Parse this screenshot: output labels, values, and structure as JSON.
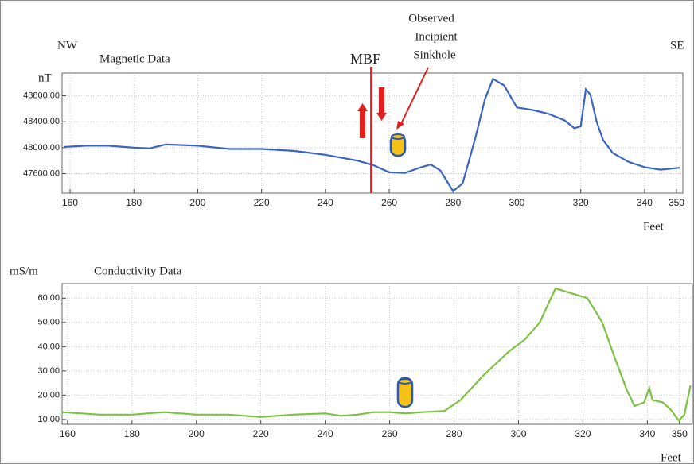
{
  "chart_data": [
    {
      "type": "line",
      "title": "Magnetic Data",
      "left_label": "NW",
      "right_label": "SE",
      "y_label": "nT",
      "x_label": "Feet",
      "marker_label": "MBF",
      "marker_x": 254.4,
      "callout_lines": [
        "Observed",
        "Incipient",
        "Sinkhole"
      ],
      "xlim": [
        157.5,
        352
      ],
      "ylim": [
        47300,
        49150
      ],
      "xticks": [
        160,
        180,
        200,
        220,
        240,
        260,
        280,
        300,
        320,
        340,
        350
      ],
      "yticks": [
        {
          "value": 47600,
          "label": "47600.00"
        },
        {
          "value": 48000,
          "label": "48000.00"
        },
        {
          "value": 48400,
          "label": "48400.00"
        },
        {
          "value": 48800,
          "label": "48800.00"
        }
      ],
      "grid": true,
      "series": [
        {
          "name": "Magnetic Data",
          "color": "#3a63c6",
          "x": [
            158,
            165,
            172,
            180,
            185,
            190,
            200,
            210,
            220,
            230,
            240,
            250,
            255,
            260,
            265,
            270,
            273,
            276,
            280,
            283,
            287,
            290,
            292.5,
            296,
            300,
            305,
            310,
            315,
            318,
            320,
            321.6,
            323,
            325,
            327,
            330,
            335,
            340,
            345,
            351
          ],
          "values": [
            48010,
            48030,
            48030,
            48000,
            47990,
            48050,
            48030,
            47980,
            47980,
            47950,
            47890,
            47800,
            47730,
            47620,
            47610,
            47700,
            47740,
            47650,
            47330,
            47450,
            48150,
            48750,
            49060,
            48960,
            48620,
            48580,
            48520,
            48420,
            48300,
            48330,
            48900,
            48820,
            48400,
            48120,
            47920,
            47780,
            47700,
            47660,
            47690
          ]
        }
      ]
    },
    {
      "type": "line",
      "title": "Conductivity Data",
      "y_label": "mS/m",
      "x_label": "Feet",
      "xlim": [
        158.3,
        354
      ],
      "ylim": [
        8,
        66
      ],
      "xticks": [
        160,
        180,
        200,
        220,
        240,
        260,
        280,
        300,
        320,
        340,
        350
      ],
      "yticks": [
        {
          "value": 10,
          "label": "10.00"
        },
        {
          "value": 20,
          "label": "20.00"
        },
        {
          "value": 30,
          "label": "30.00"
        },
        {
          "value": 40,
          "label": "40.00"
        },
        {
          "value": 50,
          "label": "50.00"
        },
        {
          "value": 60,
          "label": "60.00"
        }
      ],
      "grid": true,
      "series": [
        {
          "name": "Conductivity Data",
          "color": "#7cc242",
          "x": [
            158.3,
            170,
            180,
            190,
            200,
            210,
            220,
            230,
            240,
            245,
            250,
            255,
            260,
            265,
            270,
            277,
            282,
            289,
            297,
            302,
            306.6,
            309,
            311.5,
            316.5,
            321.4,
            326,
            330,
            333.7,
            336,
            339,
            340.6,
            341.6,
            344.8,
            347.3,
            349.8,
            351.5,
            353.4
          ],
          "values": [
            13,
            12,
            12,
            13,
            12,
            12,
            11,
            12,
            12.5,
            11.5,
            12,
            13,
            13,
            12.5,
            13,
            13.5,
            18,
            28,
            38,
            43,
            50,
            57,
            64,
            62,
            60,
            50,
            35,
            22,
            15.5,
            17,
            23,
            18,
            17,
            14,
            9.5,
            12,
            24
          ]
        }
      ]
    }
  ]
}
